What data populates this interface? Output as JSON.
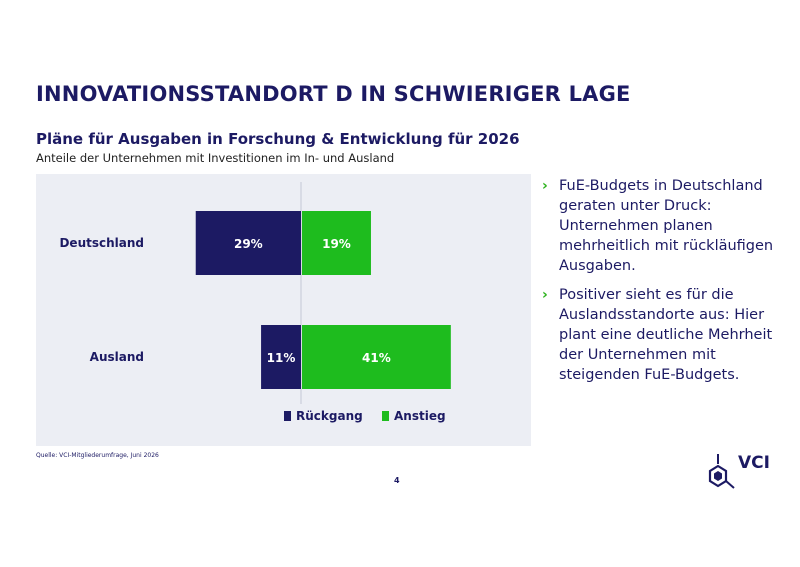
{
  "slide": {
    "title": "INNOVATIONSSTANDORT D IN SCHWIERIGER LAGE",
    "page_number": "4",
    "source": "Quelle: VCI-Mitgliederumfrage, Juni 2026",
    "logo_text": "VCI"
  },
  "chart_data": {
    "type": "bar",
    "orientation": "horizontal-diverging",
    "title": "Pläne für Ausgaben in Forschung & Entwicklung für 2026",
    "subtitle": "Anteile der Unternehmen mit Investitionen im In- und Ausland",
    "categories": [
      "Deutschland",
      "Ausland"
    ],
    "series": [
      {
        "name": "Rückgang",
        "values": [
          29,
          11
        ],
        "color": "#1c1a63",
        "direction": "left"
      },
      {
        "name": "Anstieg",
        "values": [
          19,
          41
        ],
        "color": "#1ebc1e",
        "direction": "right"
      }
    ],
    "value_format": "{v}%",
    "legend_position": "bottom",
    "grid": false
  },
  "bullets": [
    {
      "text": "FuE-Budgets in Deutschland geraten unter Druck: Unternehmen planen mehrheitlich mit rückläufigen Ausgaben."
    },
    {
      "text": "Positiver sieht es für die Auslandsstandorte aus: Hier plant eine deutliche Mehrheit der Unternehmen mit steigenden FuE-Budgets."
    }
  ],
  "colors": {
    "brand_navy": "#1c1a63",
    "accent_green": "#1ebc1e",
    "bullet_green": "#2bb21b",
    "panel_bg": "#eceef4"
  }
}
